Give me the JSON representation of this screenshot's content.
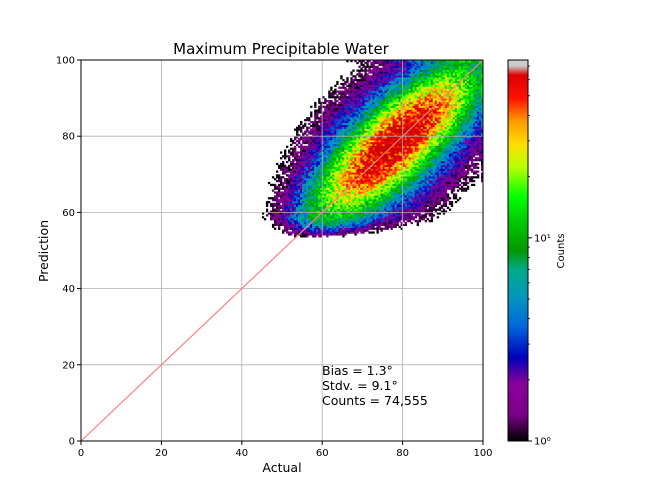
{
  "chart_data": {
    "type": "heatmap",
    "title": "Maximum Precipitable Water",
    "xlabel": "Actual",
    "ylabel": "Prediction",
    "xlim": [
      0,
      100
    ],
    "ylim": [
      0,
      100
    ],
    "xticks": [
      "0",
      "20",
      "40",
      "60",
      "80",
      "100"
    ],
    "yticks": [
      "0",
      "20",
      "40",
      "60",
      "80",
      "100"
    ],
    "grid": true,
    "reference_line": {
      "x": [
        0,
        100
      ],
      "y": [
        0,
        100
      ],
      "color": "#ff7f7f"
    },
    "colorbar": {
      "label": "Counts",
      "scale": "log",
      "range": [
        1,
        75
      ],
      "ticks": [
        {
          "value": 1,
          "label": "10⁰"
        },
        {
          "value": 10,
          "label": "10¹"
        }
      ],
      "colormap": "nipy_spectral"
    },
    "density_core": {
      "x": 78,
      "y": 78
    },
    "annotations": [
      "Bias = 1.3°",
      "Stdv. = 9.1°",
      "Counts = 74,555"
    ]
  }
}
